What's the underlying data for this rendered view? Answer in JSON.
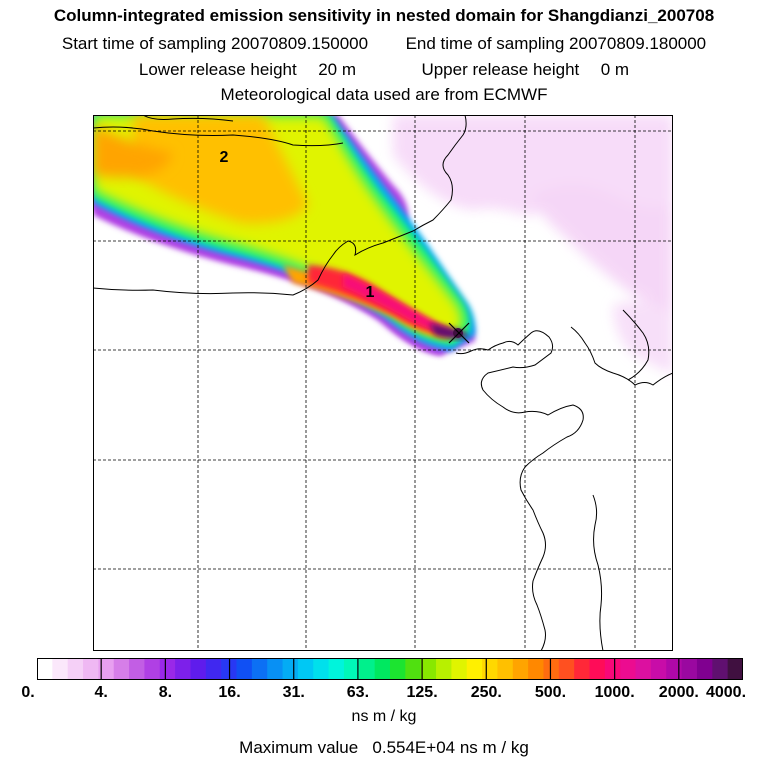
{
  "title": "Column-integrated emission sensitivity in nested domain for Shangdianzi_200708",
  "start_label": "Start time of sampling",
  "start_value": "20070809.150000",
  "end_label": "End time of sampling",
  "end_value": "20070809.180000",
  "lower_label": "Lower release height",
  "lower_value": "20 m",
  "upper_label": "Upper release height",
  "upper_value": "0 m",
  "met_line": "Meteorological data used are from ECMWF",
  "markers": [
    "1",
    "2"
  ],
  "legend": {
    "ticks": [
      "0.",
      "4.",
      "8.",
      "16.",
      "31.",
      "63.",
      "125.",
      "250.",
      "500.",
      "1000.",
      "2000.",
      "4000."
    ],
    "colors": [
      "#ffffff",
      "#fbe8fb",
      "#f5d0f7",
      "#efb8f3",
      "#e8a0f0",
      "#d67ee8",
      "#c25ee4",
      "#b040e4",
      "#9a28e8",
      "#7d20ea",
      "#5f1cec",
      "#4028f0",
      "#2838f4",
      "#1050f4",
      "#0c70f4",
      "#0890f4",
      "#04acf4",
      "#00c8f4",
      "#00e0ec",
      "#00f4dc",
      "#00f8b8",
      "#00f08c",
      "#00e860",
      "#1ce430",
      "#50e010",
      "#88e800",
      "#b8f000",
      "#e0f400",
      "#fff000",
      "#ffd800",
      "#ffc000",
      "#ffa400",
      "#ff8800",
      "#ff6c10",
      "#ff5020",
      "#ff2838",
      "#ff0c58",
      "#f80878",
      "#ec0c90",
      "#dc10a0",
      "#c80ca8",
      "#b008a8",
      "#9a08a0",
      "#800090",
      "#601070",
      "#401040"
    ],
    "unit": "ns m / kg",
    "max_label": "Maximum value",
    "max_value": "0.554E+04",
    "max_unit": "ns m / kg"
  }
}
